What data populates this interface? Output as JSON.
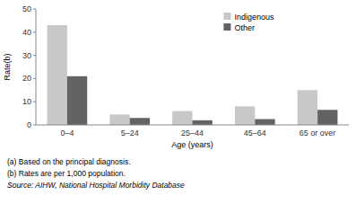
{
  "chart_data": {
    "type": "bar",
    "categories": [
      "0–4",
      "5–24",
      "25–44",
      "45–64",
      "65 or over"
    ],
    "series": [
      {
        "name": "Indigenous",
        "color": "#c8c8c8",
        "values": [
          43,
          4.5,
          6,
          8,
          15
        ]
      },
      {
        "name": "Other",
        "color": "#636363",
        "values": [
          21,
          3,
          2,
          2.5,
          6.5
        ]
      }
    ],
    "xlabel": "Age (years)",
    "ylabel": "Rate(b)",
    "ylim": [
      0,
      50
    ],
    "yticks": [
      0,
      10,
      20,
      30,
      40,
      50
    ],
    "grid": false,
    "legend": "top",
    "annotations": [
      "(a) Based on the principal diagnosis.",
      "(b) Rates are per 1,000 population.",
      "Source: AIHW, National Hospital Morbidity Database"
    ]
  }
}
